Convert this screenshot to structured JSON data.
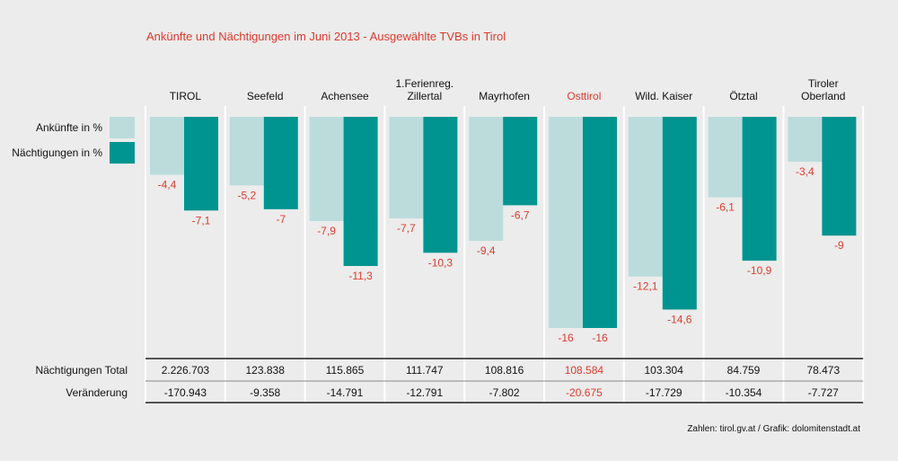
{
  "title": "Ankünfte und Nächtigungen im Juni 2013 - Ausgewählte TVBs in Tirol",
  "source": "Zahlen: tirol.gv.at / Grafik: dolomitenstadt.at",
  "colors": {
    "arrivals": "#bcdcdc",
    "nights": "#009490",
    "highlight": "#e03a2a",
    "label_neg": "#e03a2a"
  },
  "legend": {
    "arrivals": "Ankünfte in %",
    "nights": "Nächtigungen in %"
  },
  "table": {
    "row1_label": "Nächtigungen Total",
    "row2_label": "Veränderung"
  },
  "chart_data": {
    "type": "bar",
    "title": "Ankünfte und Nächtigungen im Juni 2013 - Ausgewählte TVBs in Tirol",
    "categories": [
      "TIROL",
      "Seefeld",
      "Achensee",
      "1.Ferienreg.\nZillertal",
      "Mayrhofen",
      "Osttirol",
      "Wild. Kaiser",
      "Ötztal",
      "Tiroler\nOberland"
    ],
    "highlight_category": "Osttirol",
    "series": [
      {
        "name": "Ankünfte in %",
        "values": [
          -4.4,
          -5.2,
          -7.9,
          -7.7,
          -9.4,
          -16,
          -12.1,
          -6.1,
          -3.4
        ],
        "labels": [
          "-4,4",
          "-5,2",
          "-7,9",
          "-7,7",
          "-9,4",
          "-16",
          "-12,1",
          "-6,1",
          "-3,4"
        ]
      },
      {
        "name": "Nächtigungen in %",
        "values": [
          -7.1,
          -7,
          -11.3,
          -10.3,
          -6.7,
          -16,
          -14.6,
          -10.9,
          -9
        ],
        "labels": [
          "-7,1",
          "-7",
          "-11,3",
          "-10,3",
          "-6,7",
          "-16",
          "-14,6",
          "-10,9",
          "-9"
        ]
      }
    ],
    "ylim": [
      -16,
      0
    ],
    "nights_total": [
      "2.226.703",
      "123.838",
      "115.865",
      "111.747",
      "108.816",
      "108.584",
      "103.304",
      "84.759",
      "78.473"
    ],
    "change": [
      "-170.943",
      "-9.358",
      "-14.791",
      "-12.791",
      "-7.802",
      "-20.675",
      "-17.729",
      "-10.354",
      "-7.727"
    ]
  }
}
